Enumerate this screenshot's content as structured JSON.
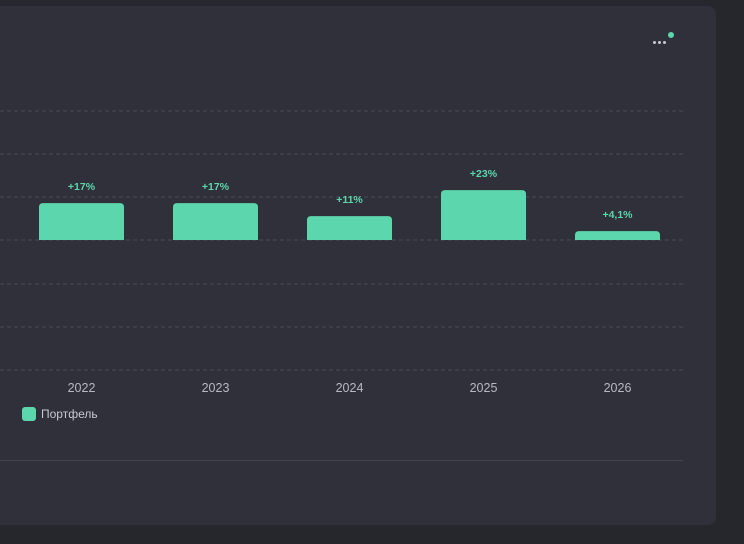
{
  "colors": {
    "background": "#26262d",
    "panel": "#30303a",
    "accent": "#5cd6ad",
    "grid": "#4a4a55",
    "tick_text": "#b8b8c2"
  },
  "menu": {
    "icon": "more-horizontal-icon",
    "notification_indicator": true
  },
  "chart_data": {
    "type": "bar",
    "categories": [
      "2022",
      "2023",
      "2024",
      "2025",
      "2026"
    ],
    "series": [
      {
        "name": "Портфель",
        "values": [
          17,
          17,
          11,
          23,
          4.1
        ]
      }
    ],
    "data_labels": [
      "+17%",
      "+17%",
      "+11%",
      "+23%",
      "+4,1%"
    ],
    "grid": true,
    "legend_position": "bottom-left"
  }
}
